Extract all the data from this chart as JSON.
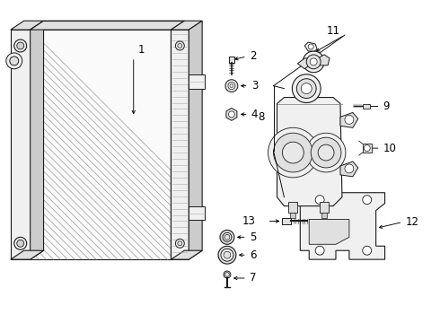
{
  "bg_color": "#ffffff",
  "lc": "#1a1a1a",
  "gray_fill": "#f0f0f0",
  "gray_mid": "#e0e0e0",
  "gray_dark": "#cccccc",
  "label_fs": 8.5,
  "leader_lw": 0.65,
  "parts_lw": 0.8
}
